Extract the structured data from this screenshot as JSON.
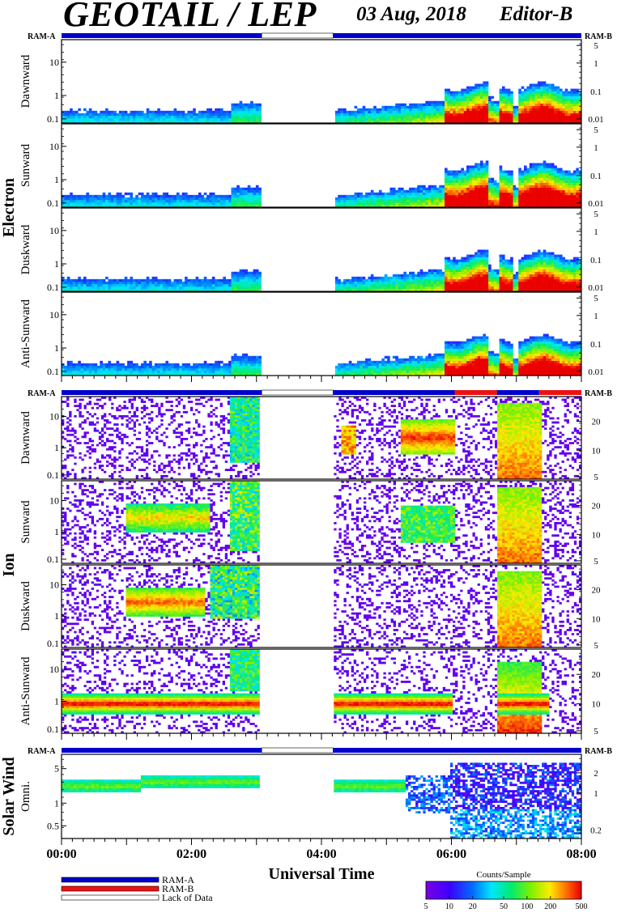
{
  "header": {
    "title": "GEOTAIL / LEP",
    "date": "03 Aug, 2018",
    "editor": "Editor-B"
  },
  "ram_labels": {
    "left": "RAM-A",
    "right": "RAM-B"
  },
  "colors": {
    "ram_a": "#0000cc",
    "ram_b": "#ee1111",
    "lack": "#ffffff"
  },
  "chart_data": {
    "type": "heatmap",
    "xlabel": "Universal Time",
    "x_ticks": [
      "00:00",
      "02:00",
      "04:00",
      "06:00",
      "08:00"
    ],
    "x_range_hours": [
      0,
      8
    ],
    "data_gap_hours": [
      3.08,
      4.18
    ],
    "groups": [
      {
        "name": "Electron",
        "panels": [
          {
            "label": "Dawnward",
            "left_ticks": [
              "10",
              "1",
              "0.1"
            ],
            "right_ticks": [
              "5",
              "1",
              "0.1",
              "0.01"
            ]
          },
          {
            "label": "Sunward",
            "left_ticks": [
              "10",
              "1",
              "0.1"
            ],
            "right_ticks": [
              "5",
              "1",
              "0.1",
              "0.01"
            ]
          },
          {
            "label": "Duskward",
            "left_ticks": [
              "10",
              "1",
              "0.1"
            ],
            "right_ticks": [
              "5",
              "1",
              "0.1",
              "0.01"
            ]
          },
          {
            "label": "Anti-Sunward",
            "left_ticks": [
              "10",
              "1",
              "0.1"
            ],
            "right_ticks": [
              "5",
              "1",
              "0.1",
              "0.01"
            ]
          }
        ]
      },
      {
        "name": "Ion",
        "panels": [
          {
            "label": "Dawnward",
            "left_ticks": [
              "10",
              "1",
              "0.1"
            ],
            "right_ticks": [
              "20",
              "10",
              "5"
            ]
          },
          {
            "label": "Sunward",
            "left_ticks": [
              "10",
              "1",
              "0.1"
            ],
            "right_ticks": [
              "20",
              "10",
              "5"
            ]
          },
          {
            "label": "Duskward",
            "left_ticks": [
              "10",
              "1",
              "0.1"
            ],
            "right_ticks": [
              "20",
              "10",
              "5"
            ]
          },
          {
            "label": "Anti-Sunward",
            "left_ticks": [
              "10",
              "1",
              "0.1"
            ],
            "right_ticks": [
              "20",
              "10",
              "5"
            ]
          }
        ]
      },
      {
        "name": "Solar Wind",
        "panels": [
          {
            "label": "Omni.",
            "left_ticks": [
              "5",
              "1",
              "0.5"
            ],
            "right_ticks": [
              "2",
              "1",
              "0.2"
            ]
          }
        ]
      }
    ],
    "ram_segments": [
      {
        "start": 0,
        "end": 3.08,
        "mode": "RAM-A"
      },
      {
        "start": 3.08,
        "end": 4.18,
        "mode": "Lack of Data"
      },
      {
        "start": 4.18,
        "end": 8.0,
        "mode": "RAM-A"
      }
    ],
    "ion_ram_segments": [
      {
        "start": 0,
        "end": 3.08,
        "mode": "RAM-A"
      },
      {
        "start": 3.08,
        "end": 4.18,
        "mode": "Lack of Data"
      },
      {
        "start": 4.18,
        "end": 6.05,
        "mode": "RAM-A"
      },
      {
        "start": 6.05,
        "end": 6.7,
        "mode": "RAM-B"
      },
      {
        "start": 6.7,
        "end": 7.35,
        "mode": "RAM-A"
      },
      {
        "start": 7.35,
        "end": 8.0,
        "mode": "RAM-B"
      }
    ],
    "legend": [
      {
        "label": "RAM-A",
        "color": "#0000cc"
      },
      {
        "label": "RAM-B",
        "color": "#ee1111"
      },
      {
        "label": "Lack of Data",
        "color": "#ffffff"
      }
    ],
    "colorbar": {
      "title": "Counts/Sample",
      "ticks": [
        "5",
        "10",
        "20",
        "50",
        "100",
        "200",
        "500"
      ],
      "scale": "log"
    }
  }
}
